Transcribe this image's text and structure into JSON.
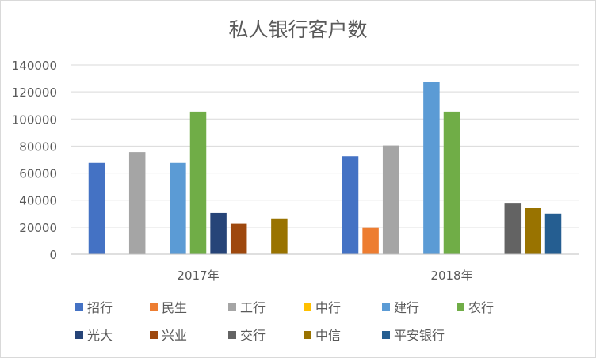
{
  "chart_data": {
    "type": "bar",
    "title": "私人银行客户数",
    "categories": [
      "2017年",
      "2018年"
    ],
    "ylim": [
      0,
      140000
    ],
    "yticks": [
      "0",
      "20000",
      "40000",
      "60000",
      "80000",
      "100000",
      "120000",
      "140000"
    ],
    "yticks_values": [
      0,
      20000,
      40000,
      60000,
      80000,
      100000,
      120000,
      140000
    ],
    "grid": true,
    "legend_position": "bottom",
    "series": [
      {
        "name": "招行",
        "color": "#4472C4",
        "values": [
          67500,
          72500
        ]
      },
      {
        "name": "民生",
        "color": "#ED7D31",
        "values": [
          null,
          19500
        ]
      },
      {
        "name": "工行",
        "color": "#A5A5A5",
        "values": [
          75500,
          80500
        ]
      },
      {
        "name": "中行",
        "color": "#FFC000",
        "values": [
          null,
          null
        ]
      },
      {
        "name": "建行",
        "color": "#5B9BD5",
        "values": [
          67500,
          127500
        ]
      },
      {
        "name": "农行",
        "color": "#70AD47",
        "values": [
          105500,
          105500
        ]
      },
      {
        "name": "光大",
        "color": "#264478",
        "values": [
          30500,
          null
        ]
      },
      {
        "name": "兴业",
        "color": "#9E480E",
        "values": [
          22500,
          null
        ]
      },
      {
        "name": "交行",
        "color": "#636363",
        "values": [
          null,
          38000
        ]
      },
      {
        "name": "中信",
        "color": "#997300",
        "values": [
          26500,
          34000
        ]
      },
      {
        "name": "平安银行",
        "color": "#255E91",
        "values": [
          null,
          30000
        ]
      }
    ]
  }
}
